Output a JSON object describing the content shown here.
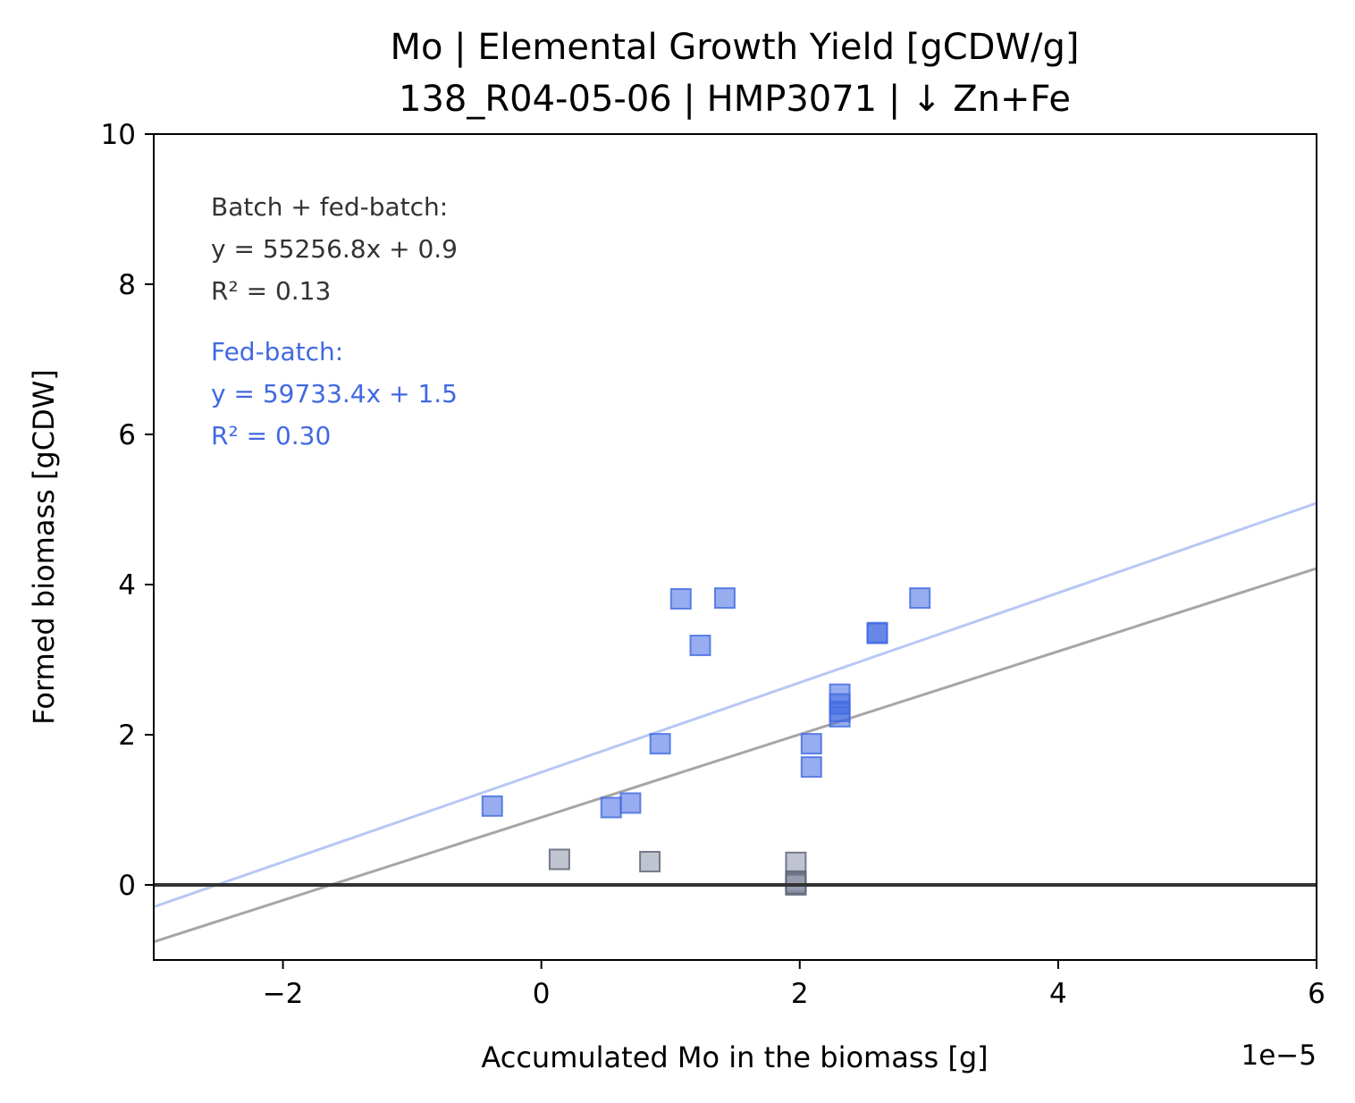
{
  "chart_data": {
    "type": "scatter",
    "title_line1": "Mo  |  Elemental Growth Yield [gCDW/g]",
    "title_line2": "138_R04-05-06  |  HMP3071  |  ↓ Zn+Fe",
    "xlabel": "Accumulated Mo in the biomass [g]",
    "ylabel": "Formed biomass [gCDW]",
    "x_offset_label": "1e−5",
    "x_scale": 1e-05,
    "xlim": [
      -3,
      6
    ],
    "ylim": [
      -1,
      10
    ],
    "x_ticks": [
      -2,
      0,
      2,
      4,
      6
    ],
    "x_tick_labels": [
      "−2",
      "0",
      "2",
      "4",
      "6"
    ],
    "y_ticks": [
      0,
      2,
      4,
      6,
      8,
      10
    ],
    "y_tick_labels": [
      "0",
      "2",
      "4",
      "6",
      "8",
      "10"
    ],
    "colors": {
      "fedbatch_marker": "#4169e1",
      "batch_marker": "#8c93aa",
      "batch_marker_dark": "#5a5f70",
      "fedbatch_line": "#b8c8f5",
      "all_line": "#a6a6a6",
      "zero_line": "#333333",
      "annot_all": "#333333",
      "annot_fed": "#4169e1"
    },
    "annotations": {
      "all": {
        "label": "Batch + fed-batch:",
        "equation": "y = 55256.8x + 0.9",
        "r2": "R² = 0.13",
        "slope": 55256.8,
        "intercept": 0.9
      },
      "fed": {
        "label": "Fed-batch:",
        "equation": "y = 59733.4x + 1.5",
        "r2": "R² = 0.30",
        "slope": 59733.4,
        "intercept": 1.5
      }
    },
    "series": [
      {
        "name": "Fed-batch",
        "marker": "square",
        "points": [
          {
            "x": -0.38,
            "y": 1.05
          },
          {
            "x": 0.54,
            "y": 1.03
          },
          {
            "x": 0.69,
            "y": 1.09
          },
          {
            "x": 0.92,
            "y": 1.88
          },
          {
            "x": 1.08,
            "y": 3.81
          },
          {
            "x": 1.23,
            "y": 3.19
          },
          {
            "x": 1.42,
            "y": 3.82
          },
          {
            "x": 2.09,
            "y": 1.88
          },
          {
            "x": 2.09,
            "y": 1.57
          },
          {
            "x": 2.31,
            "y": 2.54
          },
          {
            "x": 2.31,
            "y": 2.41
          },
          {
            "x": 2.31,
            "y": 2.31
          },
          {
            "x": 2.31,
            "y": 2.24
          },
          {
            "x": 2.6,
            "y": 3.35
          },
          {
            "x": 2.6,
            "y": 3.36
          },
          {
            "x": 2.93,
            "y": 3.82
          }
        ]
      },
      {
        "name": "Batch",
        "marker": "square",
        "points": [
          {
            "x": 0.14,
            "y": 0.34
          },
          {
            "x": 0.84,
            "y": 0.31
          },
          {
            "x": 1.97,
            "y": 0.3
          },
          {
            "x": 1.97,
            "y": 0.05
          },
          {
            "x": 1.97,
            "y": 0.0
          },
          {
            "x": 1.97,
            "y": 0.02
          }
        ]
      }
    ]
  }
}
